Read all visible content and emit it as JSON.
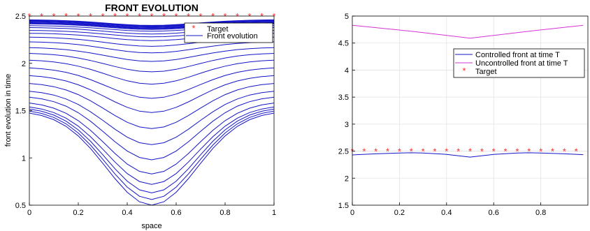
{
  "chart_data": [
    {
      "type": "line",
      "title": "FRONT EVOLUTION",
      "xlabel": "space",
      "ylabel": "front evolution in time",
      "xlim": [
        0,
        1
      ],
      "ylim": [
        0.5,
        2.5
      ],
      "xticks": [
        "0",
        "0.2",
        "0.4",
        "0.6",
        "0.8",
        "1"
      ],
      "yticks": [
        "0.5",
        "1",
        "1.5",
        "2",
        "2.5"
      ],
      "grid": false,
      "legend": {
        "placement": "top-right",
        "entries": [
          "Target",
          "Front evolution"
        ]
      },
      "colors": {
        "front": "#1414c8",
        "target": "#ff2a2a"
      },
      "target": {
        "name": "Target",
        "x": [
          0,
          0.05,
          0.1,
          0.15,
          0.2,
          0.25,
          0.3,
          0.35,
          0.4,
          0.45,
          0.5,
          0.55,
          0.6,
          0.65,
          0.7,
          0.75,
          0.8,
          0.85,
          0.9,
          0.95,
          1.0
        ],
        "y": 2.5
      },
      "front_evolution": {
        "name": "Front evolution",
        "x": [
          0,
          0.05,
          0.1,
          0.15,
          0.2,
          0.25,
          0.3,
          0.35,
          0.4,
          0.45,
          0.5,
          0.55,
          0.6,
          0.65,
          0.7,
          0.75,
          0.8,
          0.85,
          0.9,
          0.95,
          1.0
        ],
        "curve_levels": [
          1.5,
          1.52,
          1.54,
          1.56,
          1.6,
          1.66,
          1.72,
          1.8,
          1.88,
          1.96,
          2.04,
          2.11,
          2.17,
          2.23,
          2.28,
          2.32,
          2.35,
          2.38,
          2.4,
          2.42,
          2.43,
          2.44,
          2.45,
          2.455,
          2.46
        ],
        "curve_minima": [
          0.5,
          0.56,
          0.63,
          0.72,
          0.83,
          0.98,
          1.14,
          1.31,
          1.48,
          1.63,
          1.78,
          1.91,
          2.02,
          2.11,
          2.18,
          2.24,
          2.28,
          2.31,
          2.34,
          2.36,
          2.37,
          2.38,
          2.39,
          2.395,
          2.4
        ]
      }
    },
    {
      "type": "line",
      "title": "",
      "xlabel": "",
      "ylabel": "",
      "xlim": [
        0,
        1
      ],
      "ylim": [
        1.5,
        5
      ],
      "xticks": [
        "0",
        "0.2",
        "0.4",
        "0.6",
        "0.8"
      ],
      "yticks": [
        "1.5",
        "2",
        "2.5",
        "3",
        "3.5",
        "4",
        "4.5",
        "5"
      ],
      "grid": true,
      "legend": {
        "placement": "top-right",
        "entries": [
          "Controlled front at time T",
          "Uncontrolled front at time T",
          "Target"
        ]
      },
      "series": [
        {
          "name": "Controlled front at time T",
          "color": "#1414c8",
          "x": [
            0,
            0.1,
            0.2,
            0.25,
            0.3,
            0.4,
            0.5,
            0.6,
            0.7,
            0.75,
            0.8,
            0.9,
            0.98
          ],
          "y": [
            2.43,
            2.45,
            2.465,
            2.47,
            2.465,
            2.44,
            2.39,
            2.44,
            2.465,
            2.47,
            2.465,
            2.45,
            2.435
          ]
        },
        {
          "name": "Uncontrolled front at time T",
          "color": "#d633d6",
          "x": [
            0,
            0.25,
            0.5,
            0.75,
            0.98
          ],
          "y": [
            4.83,
            4.72,
            4.59,
            4.72,
            4.83
          ]
        },
        {
          "name": "Target",
          "color": "#ff2a2a",
          "x": [
            0,
            0.05,
            0.1,
            0.15,
            0.2,
            0.25,
            0.3,
            0.35,
            0.4,
            0.45,
            0.5,
            0.55,
            0.6,
            0.65,
            0.7,
            0.75,
            0.8,
            0.85,
            0.9,
            0.95
          ],
          "y": 2.5
        }
      ]
    }
  ]
}
